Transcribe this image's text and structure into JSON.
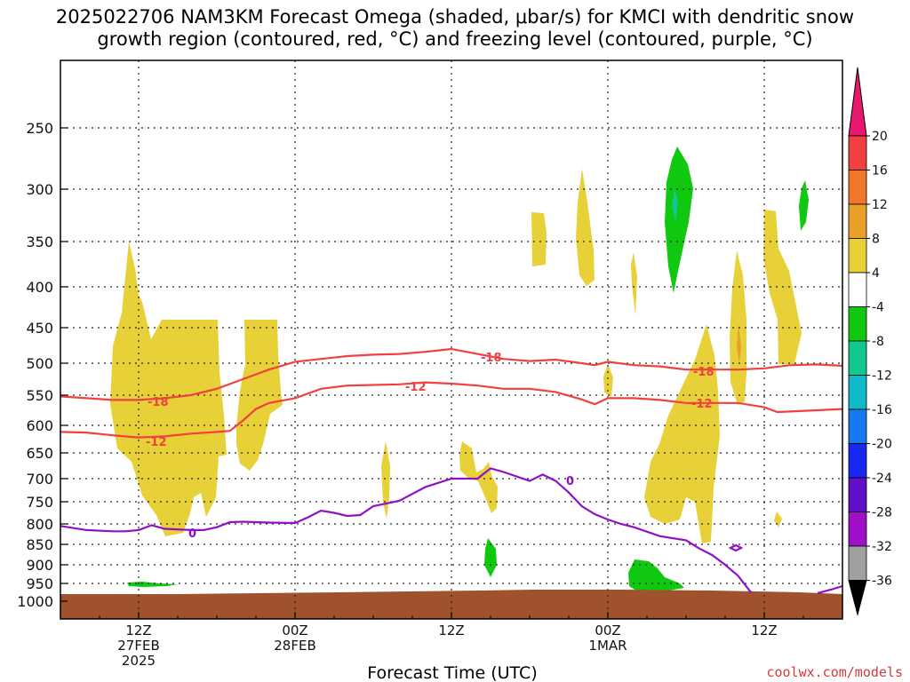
{
  "title_line1": "2025022706 NAM3KM Forecast Omega (shaded, μbar/s) for KMCI with dendritic snow",
  "title_line2": "growth region (contoured, red, °C) and freezing level (contoured, purple, °C)",
  "credit": "coolwx.com/models",
  "chart_data": {
    "type": "time-height cross section",
    "title": "2025022706 NAM3KM Forecast Omega (shaded, μbar/s) for KMCI with dendritic snow growth region (contoured, red, °C) and freezing level (contoured, purple, °C)",
    "xlabel": "Forecast Time (UTC)",
    "ylabel": "",
    "x_start_hour": 6,
    "x_end_hour": 66,
    "x_ticks": [
      {
        "hour": 12,
        "line1": "12Z",
        "line2": "27FEB",
        "line3": "2025"
      },
      {
        "hour": 24,
        "line1": "00Z",
        "line2": "28FEB",
        "line3": ""
      },
      {
        "hour": 36,
        "line1": "12Z",
        "line2": "",
        "line3": ""
      },
      {
        "hour": 48,
        "line1": "00Z",
        "line2": "1MAR",
        "line3": ""
      },
      {
        "hour": 60,
        "line1": "12Z",
        "line2": "",
        "line3": ""
      }
    ],
    "y_ticks": [
      250,
      300,
      350,
      400,
      450,
      500,
      550,
      600,
      650,
      700,
      750,
      800,
      850,
      900,
      950,
      1000
    ],
    "grid": true,
    "colorbar": {
      "labels": [
        20,
        16,
        12,
        8,
        4,
        -4,
        -8,
        -12,
        -16,
        -20,
        -24,
        -28,
        -32,
        -36
      ],
      "colors": [
        "#e8186f",
        "#f04040",
        "#f07828",
        "#e8a028",
        "#e8d038",
        "#ffffff",
        "#10c810",
        "#10c890",
        "#10b8c8",
        "#1878f0",
        "#1828f0",
        "#6010c8",
        "#a010c8",
        "#a0a0a0",
        "#000000"
      ]
    },
    "ground_color": "#a0522d",
    "contours": [
      {
        "name": "-18",
        "color": "#f04040",
        "points": [
          [
            6,
            552
          ],
          [
            8,
            555
          ],
          [
            10,
            558
          ],
          [
            12,
            558
          ],
          [
            14,
            555
          ],
          [
            16,
            550
          ],
          [
            18,
            540
          ],
          [
            20,
            525
          ],
          [
            22,
            510
          ],
          [
            24,
            498
          ],
          [
            26,
            494
          ],
          [
            28,
            490
          ],
          [
            30,
            488
          ],
          [
            32,
            487
          ],
          [
            34,
            484
          ],
          [
            35,
            482
          ],
          [
            36,
            480
          ],
          [
            38,
            487
          ],
          [
            40,
            494
          ],
          [
            42,
            497
          ],
          [
            44,
            495
          ],
          [
            46,
            500
          ],
          [
            47,
            503
          ],
          [
            48,
            498
          ],
          [
            50,
            503
          ],
          [
            52,
            505
          ],
          [
            54,
            510
          ],
          [
            56,
            510
          ],
          [
            58,
            510
          ],
          [
            60,
            508
          ],
          [
            62,
            503
          ],
          [
            64,
            502
          ],
          [
            66,
            504
          ]
        ]
      },
      {
        "name": "-12",
        "color": "#f04040",
        "points": [
          [
            6,
            612
          ],
          [
            8,
            613
          ],
          [
            10,
            618
          ],
          [
            12,
            622
          ],
          [
            14,
            620
          ],
          [
            16,
            615
          ],
          [
            18,
            612
          ],
          [
            19,
            610
          ],
          [
            20,
            592
          ],
          [
            21,
            573
          ],
          [
            22,
            563
          ],
          [
            24,
            555
          ],
          [
            26,
            540
          ],
          [
            28,
            535
          ],
          [
            30,
            534
          ],
          [
            32,
            533
          ],
          [
            34,
            530
          ],
          [
            36,
            532
          ],
          [
            38,
            535
          ],
          [
            40,
            540
          ],
          [
            42,
            540
          ],
          [
            44,
            545
          ],
          [
            46,
            557
          ],
          [
            47,
            565
          ],
          [
            48,
            555
          ],
          [
            50,
            555
          ],
          [
            52,
            558
          ],
          [
            54,
            563
          ],
          [
            56,
            563
          ],
          [
            58,
            563
          ],
          [
            60,
            570
          ],
          [
            61,
            578
          ],
          [
            62,
            577
          ],
          [
            64,
            575
          ],
          [
            66,
            573
          ]
        ]
      },
      {
        "name": "0",
        "color": "#9010c8",
        "points": [
          [
            6,
            805
          ],
          [
            8,
            815
          ],
          [
            10,
            818
          ],
          [
            11,
            818
          ],
          [
            12,
            815
          ],
          [
            13,
            803
          ],
          [
            14,
            812
          ],
          [
            16,
            815
          ],
          [
            17,
            815
          ],
          [
            18,
            808
          ],
          [
            19,
            796
          ],
          [
            20,
            795
          ],
          [
            22,
            797
          ],
          [
            24,
            798
          ],
          [
            25,
            785
          ],
          [
            26,
            770
          ],
          [
            27,
            775
          ],
          [
            28,
            782
          ],
          [
            29,
            780
          ],
          [
            30,
            760
          ],
          [
            32,
            748
          ],
          [
            34,
            718
          ],
          [
            36,
            700
          ],
          [
            38,
            700
          ],
          [
            39,
            680
          ],
          [
            40,
            687
          ],
          [
            42,
            705
          ],
          [
            43,
            692
          ],
          [
            44,
            705
          ],
          [
            45,
            730
          ],
          [
            46,
            760
          ],
          [
            47,
            778
          ],
          [
            48,
            790
          ],
          [
            49,
            800
          ],
          [
            50,
            808
          ],
          [
            52,
            830
          ],
          [
            54,
            840
          ],
          [
            55,
            860
          ],
          [
            56,
            876
          ],
          [
            57,
            900
          ],
          [
            58,
            930
          ],
          [
            59,
            976
          ]
        ]
      }
    ],
    "omega_regions": [
      {
        "name": "+4 to +8 ascent",
        "color": "#e8d038",
        "count": 12
      },
      {
        "name": "-4 to -8 descent",
        "color": "#10c810",
        "count": 6
      }
    ]
  }
}
